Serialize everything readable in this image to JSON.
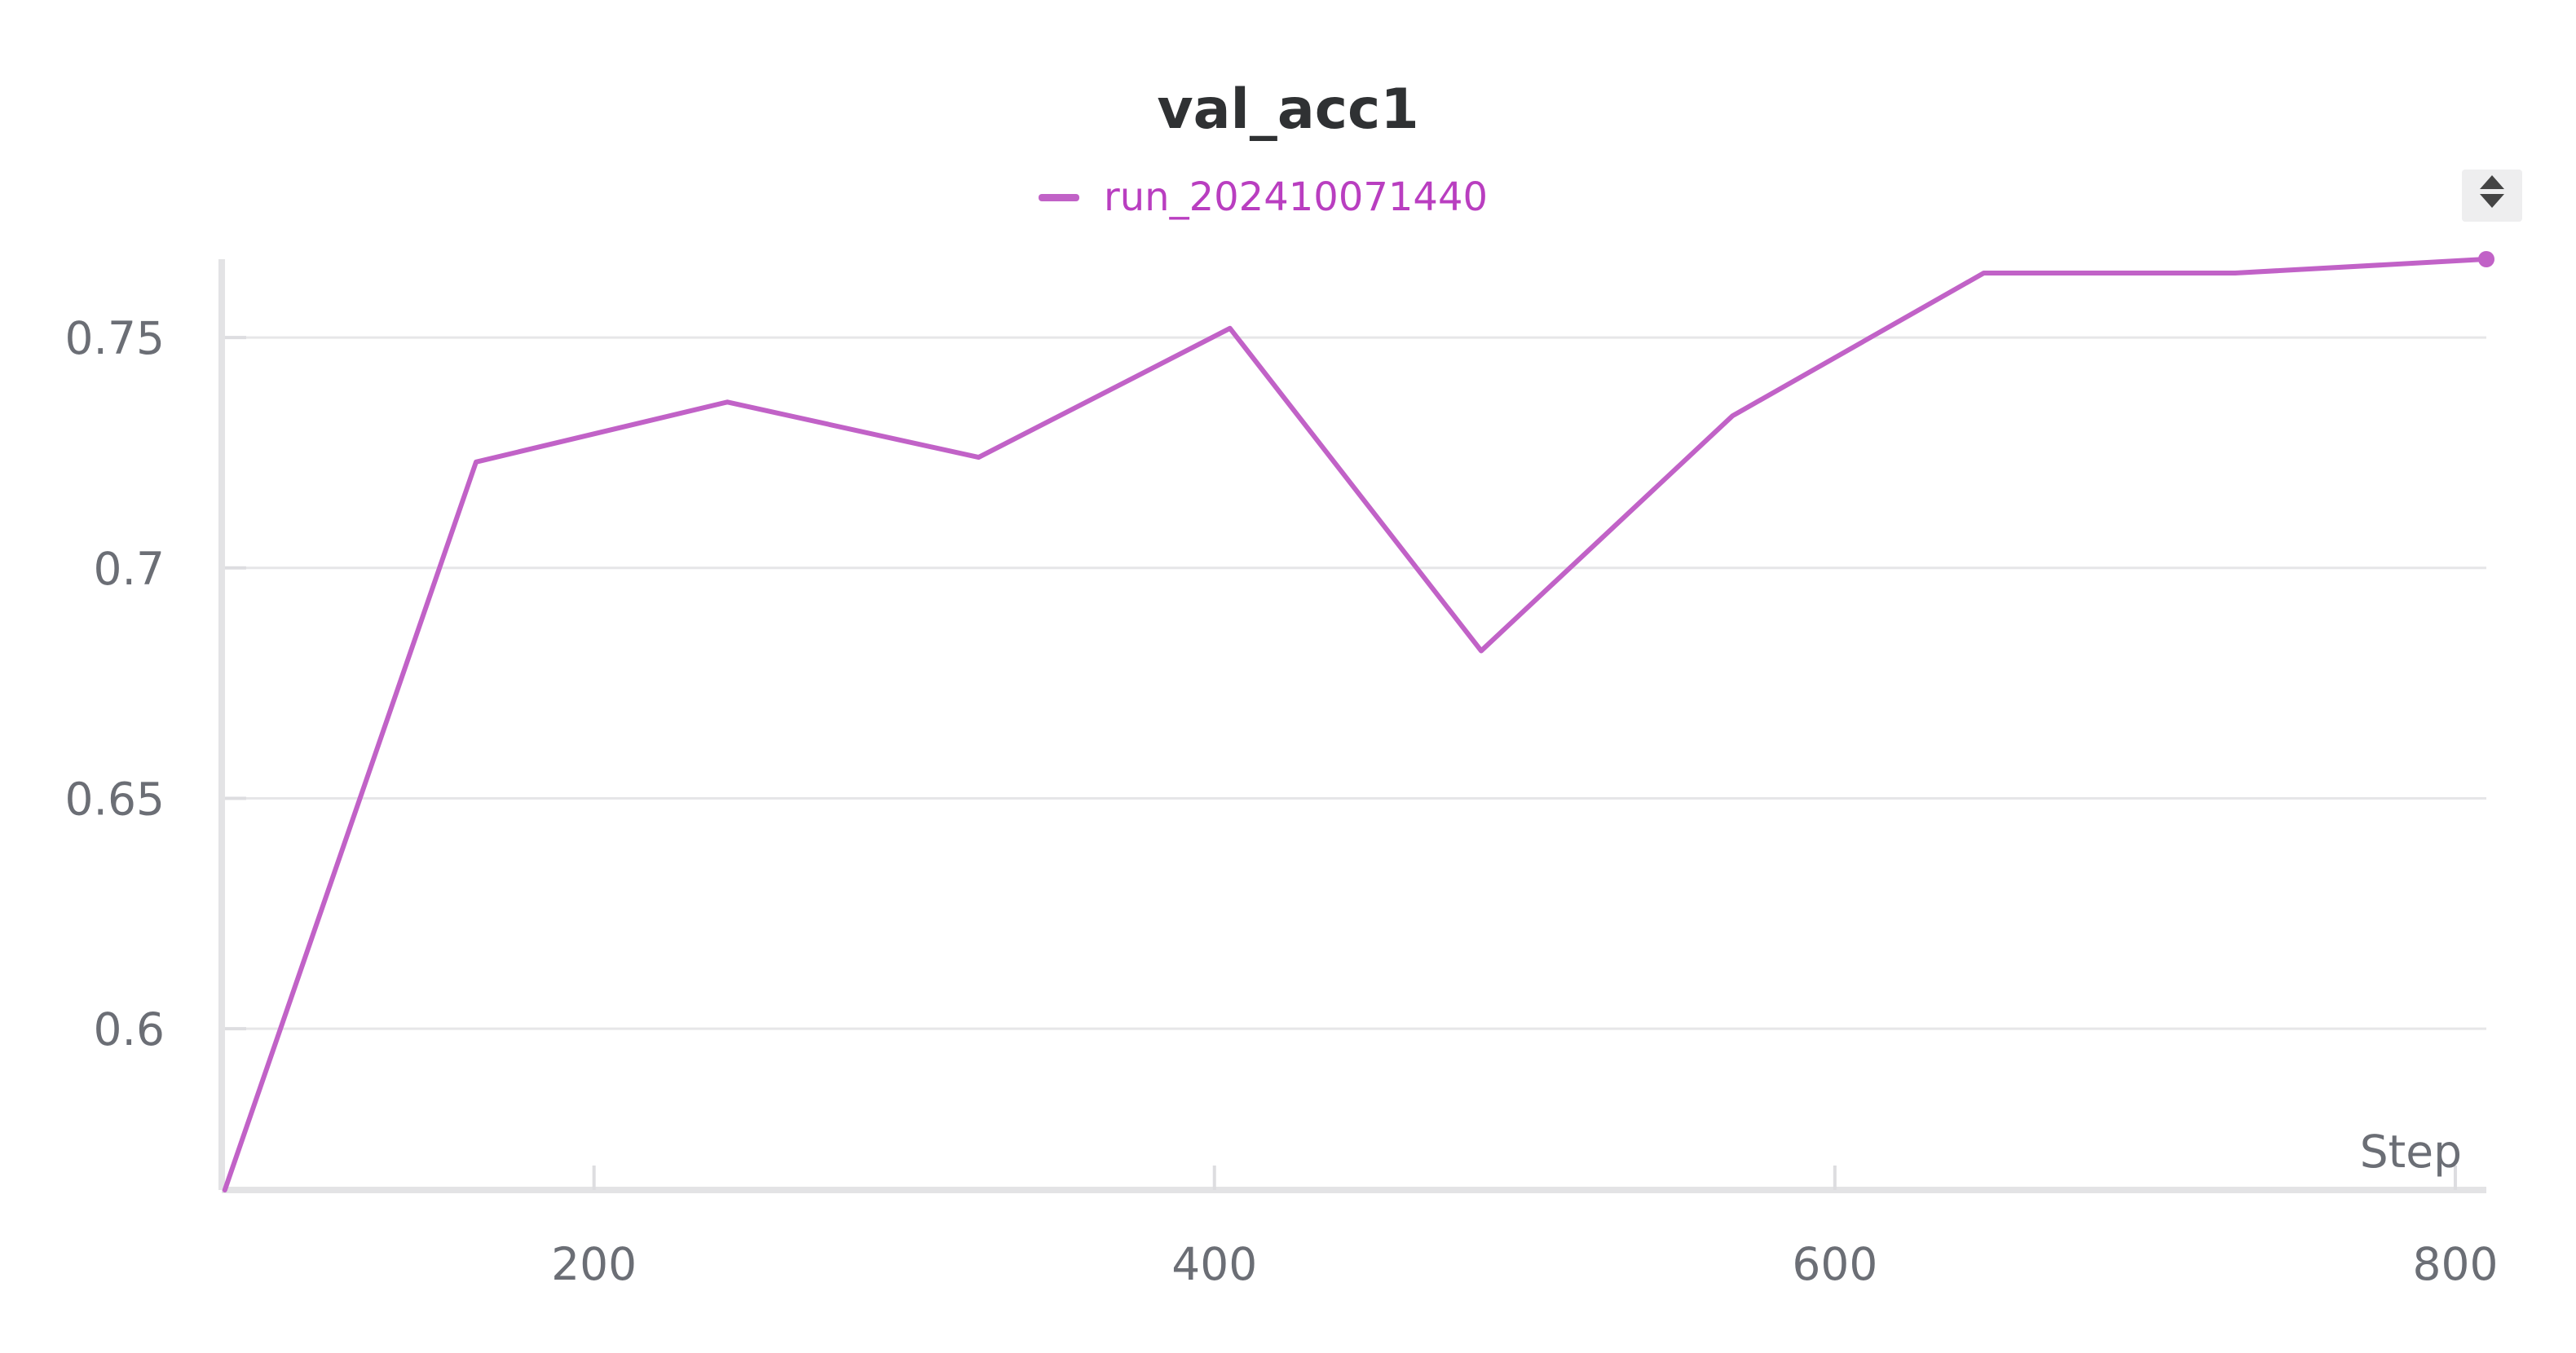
{
  "chart_data": {
    "type": "line",
    "title": "val_acc1",
    "xlabel": "Step",
    "ylabel": "",
    "xlim": [
      80,
      810
    ],
    "ylim": [
      0.565,
      0.767
    ],
    "x_ticks": [
      200,
      400,
      600,
      800
    ],
    "y_ticks": [
      0.6,
      0.65,
      0.7,
      0.75
    ],
    "x_tick_labels": [
      "200",
      "400",
      "600",
      "800"
    ],
    "y_tick_labels": [
      "0.6",
      "0.65",
      "0.7",
      "0.75"
    ],
    "grid": "horizontal",
    "legend_position": "top-center",
    "series": [
      {
        "name": "run_202410071440",
        "color": "#c162c7",
        "label_color": "#b93ec0",
        "x": [
          81,
          162,
          243,
          324,
          405,
          486,
          567,
          648,
          729,
          810
        ],
        "y": [
          0.565,
          0.723,
          0.736,
          0.724,
          0.752,
          0.682,
          0.733,
          0.764,
          0.764,
          0.767
        ]
      }
    ]
  },
  "controls": {
    "sort_icon": "sort-up-down-icon"
  }
}
